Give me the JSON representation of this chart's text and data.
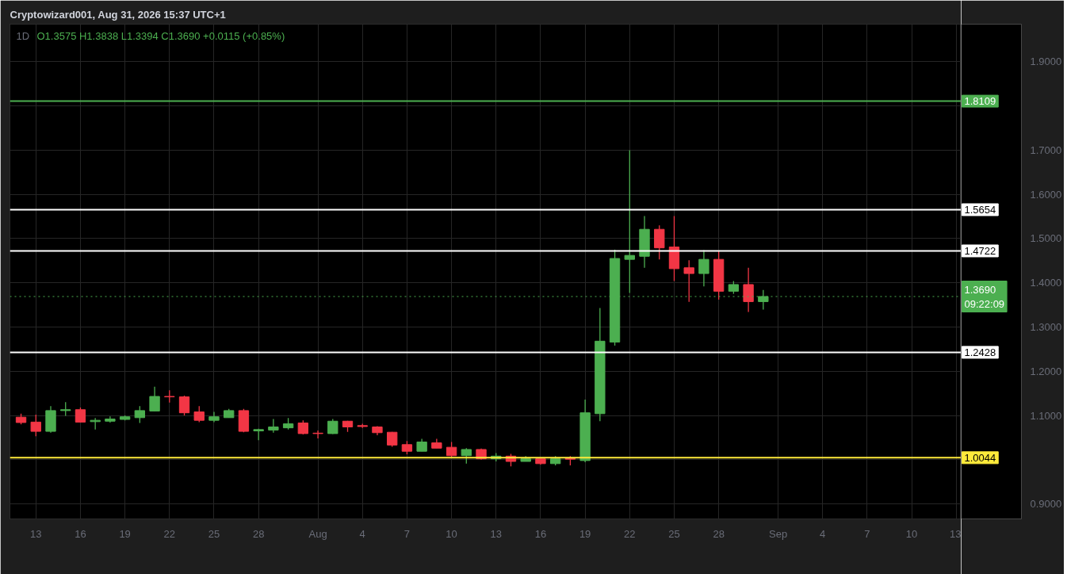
{
  "chart_data": {
    "type": "candlestick",
    "title": "1D",
    "subtitle": "O1.3575 H1.3838 L1.3394 C1.3690 +0.0115 (+0.85%)",
    "annotations": [
      "Cryptowizard001, Aug 31, 2026 15:37 UTC+1"
    ],
    "x": [
      "2026-07-12",
      "2026-07-13",
      "2026-07-14",
      "2026-07-15",
      "2026-07-16",
      "2026-07-17",
      "2026-07-18",
      "2026-07-19",
      "2026-07-20",
      "2026-07-21",
      "2026-07-22",
      "2026-07-23",
      "2026-07-24",
      "2026-07-25",
      "2026-07-26",
      "2026-07-27",
      "2026-07-28",
      "2026-07-29",
      "2026-07-30",
      "2026-07-31",
      "2026-08-01",
      "2026-08-02",
      "2026-08-03",
      "2026-08-04",
      "2026-08-05",
      "2026-08-06",
      "2026-08-07",
      "2026-08-08",
      "2026-08-09",
      "2026-08-10",
      "2026-08-11",
      "2026-08-12",
      "2026-08-13",
      "2026-08-14",
      "2026-08-15",
      "2026-08-16",
      "2026-08-17",
      "2026-08-18",
      "2026-08-19",
      "2026-08-20",
      "2026-08-21",
      "2026-08-22",
      "2026-08-23",
      "2026-08-24",
      "2026-08-25",
      "2026-08-26",
      "2026-08-27",
      "2026-08-28",
      "2026-08-29",
      "2026-08-30",
      "2026-08-31"
    ],
    "ohlc": [
      [
        1.096,
        1.104,
        1.08,
        1.084
      ],
      [
        1.085,
        1.102,
        1.053,
        1.064
      ],
      [
        1.064,
        1.121,
        1.061,
        1.111
      ],
      [
        1.111,
        1.13,
        1.099,
        1.113
      ],
      [
        1.113,
        1.118,
        1.084,
        1.085
      ],
      [
        1.086,
        1.094,
        1.068,
        1.089
      ],
      [
        1.087,
        1.098,
        1.084,
        1.092
      ],
      [
        1.091,
        1.1,
        1.089,
        1.097
      ],
      [
        1.095,
        1.121,
        1.083,
        1.111
      ],
      [
        1.11,
        1.165,
        1.109,
        1.143
      ],
      [
        1.143,
        1.157,
        1.129,
        1.142
      ],
      [
        1.142,
        1.145,
        1.1,
        1.106
      ],
      [
        1.108,
        1.121,
        1.085,
        1.089
      ],
      [
        1.089,
        1.108,
        1.085,
        1.097
      ],
      [
        1.095,
        1.115,
        1.095,
        1.111
      ],
      [
        1.111,
        1.115,
        1.062,
        1.064
      ],
      [
        1.065,
        1.07,
        1.044,
        1.068
      ],
      [
        1.067,
        1.092,
        1.061,
        1.074
      ],
      [
        1.072,
        1.094,
        1.068,
        1.081
      ],
      [
        1.083,
        1.089,
        1.057,
        1.059
      ],
      [
        1.06,
        1.066,
        1.048,
        1.059
      ],
      [
        1.059,
        1.092,
        1.058,
        1.087
      ],
      [
        1.087,
        1.088,
        1.063,
        1.074
      ],
      [
        1.077,
        1.081,
        1.072,
        1.075
      ],
      [
        1.074,
        1.076,
        1.055,
        1.061
      ],
      [
        1.062,
        1.063,
        1.029,
        1.033
      ],
      [
        1.034,
        1.042,
        1.012,
        1.019
      ],
      [
        1.019,
        1.047,
        1.019,
        1.04
      ],
      [
        1.038,
        1.047,
        1.026,
        1.026
      ],
      [
        1.028,
        1.04,
        1.004,
        1.009
      ],
      [
        1.009,
        1.026,
        0.991,
        1.023
      ],
      [
        1.023,
        1.025,
        1.0,
        1.002
      ],
      [
        1.002,
        1.015,
        0.996,
        1.008
      ],
      [
        1.008,
        1.013,
        0.985,
        0.996
      ],
      [
        0.996,
        1.008,
        0.996,
        1.002
      ],
      [
        1.002,
        1.003,
        0.989,
        0.991
      ],
      [
        0.991,
        1.008,
        0.987,
        1.002
      ],
      [
        1.003,
        1.008,
        0.987,
        1.001
      ],
      [
        0.998,
        1.136,
        0.994,
        1.106
      ],
      [
        1.104,
        1.343,
        1.087,
        1.268
      ],
      [
        1.266,
        1.475,
        1.258,
        1.455
      ],
      [
        1.453,
        1.7,
        1.377,
        1.462
      ],
      [
        1.46,
        1.551,
        1.434,
        1.521
      ],
      [
        1.521,
        1.53,
        1.453,
        1.479
      ],
      [
        1.481,
        1.551,
        1.404,
        1.432
      ],
      [
        1.434,
        1.451,
        1.357,
        1.421
      ],
      [
        1.421,
        1.474,
        1.392,
        1.453
      ],
      [
        1.453,
        1.472,
        1.362,
        1.381
      ],
      [
        1.381,
        1.404,
        1.375,
        1.396
      ],
      [
        1.396,
        1.434,
        1.334,
        1.3575
      ],
      [
        1.3575,
        1.3838,
        1.3394,
        1.369
      ]
    ],
    "colors": [
      "#f23645",
      "#f23645",
      "#4caf50",
      "#4caf50",
      "#f23645",
      "#4caf50",
      "#4caf50",
      "#4caf50",
      "#4caf50",
      "#4caf50",
      "#f23645",
      "#f23645",
      "#f23645",
      "#4caf50",
      "#4caf50",
      "#f23645",
      "#4caf50",
      "#4caf50",
      "#4caf50",
      "#f23645",
      "#f23645",
      "#4caf50",
      "#f23645",
      "#f23645",
      "#f23645",
      "#f23645",
      "#f23645",
      "#4caf50",
      "#f23645",
      "#f23645",
      "#4caf50",
      "#f23645",
      "#4caf50",
      "#f23645",
      "#4caf50",
      "#f23645",
      "#4caf50",
      "#f23645",
      "#4caf50",
      "#4caf50",
      "#4caf50",
      "#4caf50",
      "#4caf50",
      "#f23645",
      "#f23645",
      "#f23645",
      "#4caf50",
      "#f23645",
      "#4caf50",
      "#f23645",
      "#4caf50"
    ],
    "xlim": [
      "2026-07-11T06:00",
      "2026-09-13T08:00"
    ],
    "xticks": [
      {
        "value": "2026-07-13",
        "label": "13"
      },
      {
        "value": "2026-07-16",
        "label": "16"
      },
      {
        "value": "2026-07-19",
        "label": "19"
      },
      {
        "value": "2026-07-22",
        "label": "22"
      },
      {
        "value": "2026-07-25",
        "label": "25"
      },
      {
        "value": "2026-07-28",
        "label": "28"
      },
      {
        "value": "2026-08-01",
        "label": "Aug"
      },
      {
        "value": "2026-08-04",
        "label": "4"
      },
      {
        "value": "2026-08-07",
        "label": "7"
      },
      {
        "value": "2026-08-10",
        "label": "10"
      },
      {
        "value": "2026-08-13",
        "label": "13"
      },
      {
        "value": "2026-08-16",
        "label": "16"
      },
      {
        "value": "2026-08-19",
        "label": "19"
      },
      {
        "value": "2026-08-22",
        "label": "22"
      },
      {
        "value": "2026-08-25",
        "label": "25"
      },
      {
        "value": "2026-08-28",
        "label": "28"
      },
      {
        "value": "2026-09-01",
        "label": "Sep"
      },
      {
        "value": "2026-09-04",
        "label": "4"
      },
      {
        "value": "2026-09-07",
        "label": "7"
      },
      {
        "value": "2026-09-10",
        "label": "10"
      },
      {
        "value": "2026-09-13",
        "label": "13"
      }
    ],
    "ylim": [
      0.866,
      1.985
    ],
    "yticks": [
      {
        "value": 0.9,
        "label": "0.9000"
      },
      {
        "value": 1.0,
        "label": null
      },
      {
        "value": 1.1,
        "label": "1.1000"
      },
      {
        "value": 1.2,
        "label": "1.2000"
      },
      {
        "value": 1.3,
        "label": "1.3000"
      },
      {
        "value": 1.4,
        "label": "1.4000"
      },
      {
        "value": 1.5,
        "label": "1.5000"
      },
      {
        "value": 1.6,
        "label": "1.6000"
      },
      {
        "value": 1.7,
        "label": "1.7000"
      },
      {
        "value": 1.8,
        "label": null
      },
      {
        "value": 1.9,
        "label": "1.9000"
      }
    ],
    "grid": true,
    "ref_lines": [
      {
        "axis": "y",
        "value": 1.8109,
        "label": "1.8109",
        "color": "#4caf50",
        "line_style": "solid"
      },
      {
        "axis": "y",
        "value": 1.5654,
        "label": "1.5654",
        "color": "#ffffff",
        "line_style": "solid"
      },
      {
        "axis": "y",
        "value": 1.4722,
        "label": "1.4722",
        "color": "#ffffff",
        "line_style": "solid"
      },
      {
        "axis": "y",
        "value": 1.369,
        "label": "1.3690\n09:22:09",
        "color": "#4caf50",
        "line_style": "dotted"
      },
      {
        "axis": "y",
        "value": 1.2428,
        "label": "1.2428",
        "color": "#ffffff",
        "line_style": "solid"
      },
      {
        "axis": "y",
        "value": 1.0044,
        "label": "1.0044",
        "color": "#ffeb3b",
        "line_style": "solid"
      }
    ]
  }
}
